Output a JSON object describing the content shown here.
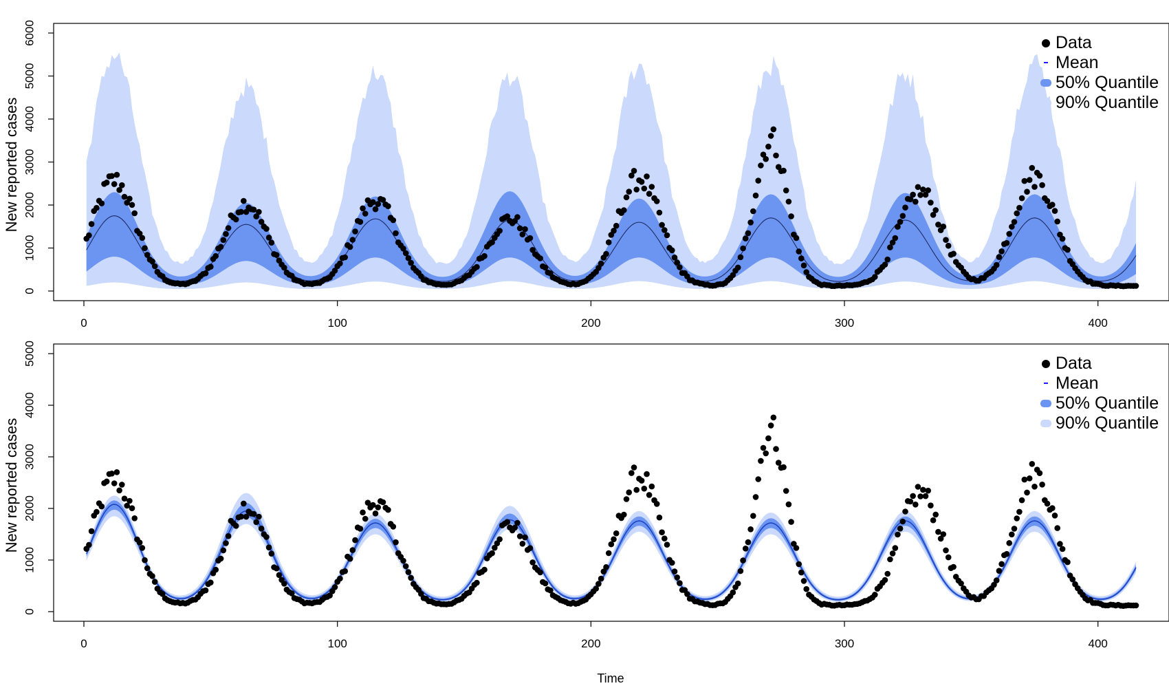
{
  "chart_data": [
    {
      "type": "area",
      "panel": "top",
      "ylabel": "New reported cases",
      "xlabel": "",
      "xlim": [
        0,
        415
      ],
      "ylim": [
        0,
        6000
      ],
      "xticks": [
        "0",
        "100",
        "200",
        "300",
        "400"
      ],
      "yticks": [
        "0",
        "1000",
        "2000",
        "3000",
        "4000",
        "5000",
        "6000"
      ],
      "legend_position": "top-right",
      "legend": [
        "Data",
        "Mean",
        "50% Quantile",
        "90% Quantile"
      ],
      "grid": false,
      "series": [
        {
          "name": "Data",
          "kind": "points",
          "color": "#000000",
          "description_peaks": [
            {
              "x": 12,
              "y": 2550
            },
            {
              "x": 64,
              "y": 2020
            },
            {
              "x": 115,
              "y": 2090
            },
            {
              "x": 168,
              "y": 1660
            },
            {
              "x": 219,
              "y": 2600
            },
            {
              "x": 271,
              "y": 3500
            },
            {
              "x": 330,
              "y": 2280
            },
            {
              "x": 375,
              "y": 2640
            }
          ],
          "troughs_approx": [
            {
              "x": 38,
              "y": 130
            },
            {
              "x": 90,
              "y": 120
            },
            {
              "x": 140,
              "y": 70
            },
            {
              "x": 190,
              "y": 80
            },
            {
              "x": 245,
              "y": 100
            },
            {
              "x": 295,
              "y": 110
            },
            {
              "x": 348,
              "y": 120
            },
            {
              "x": 400,
              "y": 150
            }
          ]
        },
        {
          "name": "Mean",
          "kind": "line",
          "color": "#1a1aa6",
          "peak_values": [
            1750,
            1550,
            1680,
            1650,
            1600,
            1700,
            1650,
            1700
          ]
        },
        {
          "name": "50% Quantile",
          "kind": "band",
          "color": "#6b95f0",
          "peak_upper": [
            2300,
            2050,
            2200,
            2320,
            2150,
            2250,
            2280,
            2250
          ],
          "peak_lower": [
            800,
            700,
            780,
            780,
            780,
            780,
            780,
            780
          ]
        },
        {
          "name": "90% Quantile",
          "kind": "band",
          "color": "#cad9fc",
          "peak_upper": [
            5550,
            4800,
            5150,
            5050,
            5300,
            5300,
            5120,
            5400
          ],
          "peak_lower": [
            200,
            200,
            220,
            230,
            230,
            230,
            220,
            230
          ]
        }
      ]
    },
    {
      "type": "area",
      "panel": "bottom",
      "ylabel": "New reported cases",
      "xlabel": "Time",
      "xlim": [
        0,
        415
      ],
      "ylim": [
        0,
        5000
      ],
      "xticks": [
        "0",
        "100",
        "200",
        "300",
        "400"
      ],
      "yticks": [
        "0",
        "1000",
        "2000",
        "3000",
        "4000",
        "5000"
      ],
      "legend_position": "top-right",
      "legend": [
        "Data",
        "Mean",
        "50% Quantile",
        "90% Quantile"
      ],
      "grid": false,
      "series": [
        {
          "name": "Data",
          "kind": "points",
          "color": "#000000"
        },
        {
          "name": "Mean",
          "kind": "line",
          "color": "#1a1aa6",
          "peak_values": [
            2080,
            1950,
            1720,
            1780,
            1760,
            1720,
            1760,
            1760
          ]
        },
        {
          "name": "50% Quantile",
          "kind": "band",
          "color": "#6b95f0"
        },
        {
          "name": "90% Quantile",
          "kind": "band",
          "color": "#cad9fc",
          "peak_upper": [
            2250,
            2300,
            1900,
            2050,
            1950,
            1920,
            1950,
            1950
          ],
          "peak_lower": [
            1850,
            1700,
            1500,
            1600,
            1550,
            1500,
            1550,
            1550
          ]
        }
      ]
    }
  ]
}
